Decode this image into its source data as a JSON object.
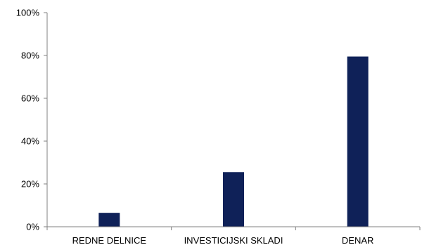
{
  "chart_data": {
    "type": "bar",
    "categories": [
      "REDNE DELNICE",
      "INVESTICIJSKI SKLADI",
      "DENAR"
    ],
    "values": [
      6.5,
      25.5,
      79.5
    ],
    "value_unit": "%",
    "ylim": [
      0,
      100
    ],
    "yticks": [
      0,
      20,
      40,
      60,
      80,
      100
    ],
    "ytick_labels": [
      "0%",
      "20%",
      "40%",
      "60%",
      "80%",
      "100%"
    ],
    "title": "",
    "xlabel": "",
    "ylabel": "",
    "grid": false,
    "legend": "none",
    "colors": {
      "bar": "#0f2158",
      "axis": "#808080",
      "text": "#000000"
    }
  }
}
